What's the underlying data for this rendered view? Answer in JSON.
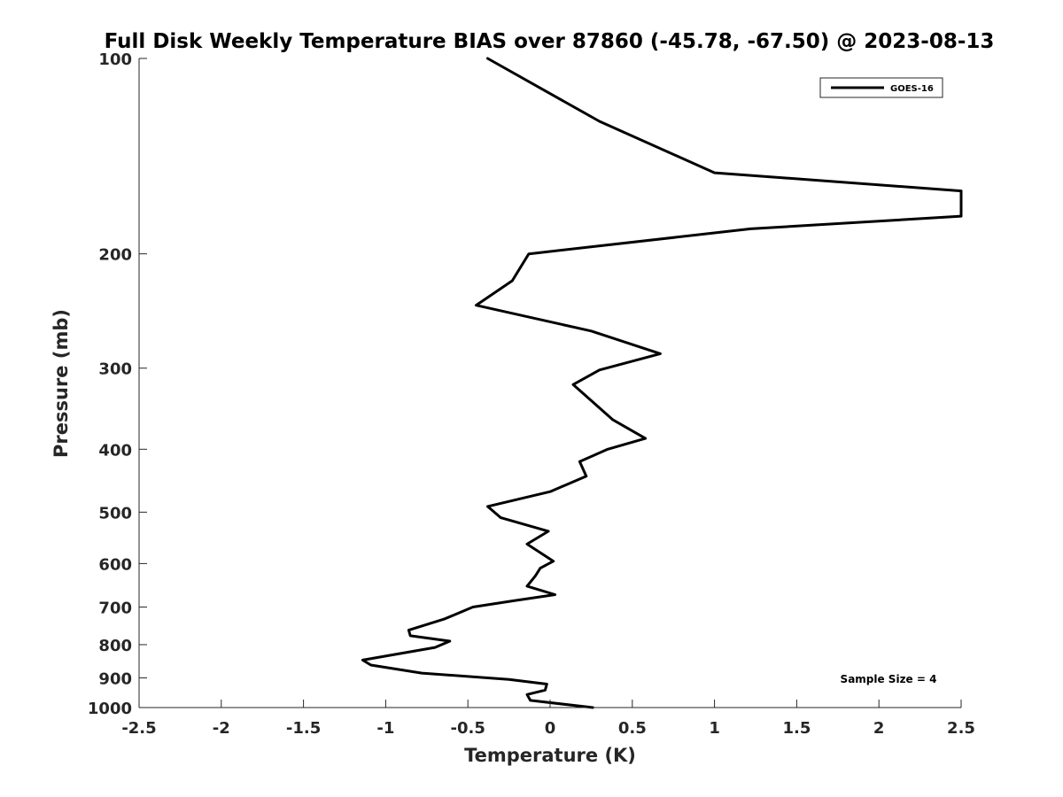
{
  "chart_data": {
    "type": "line",
    "title": "Full Disk Weekly Temperature BIAS over 87860 (-45.78, -67.50) @ 2023-08-13",
    "xlabel": "Temperature (K)",
    "ylabel": "Pressure (mb)",
    "xlim": [
      -2.5,
      2.5
    ],
    "ylim": [
      100,
      1000
    ],
    "y_scale": "log",
    "y_reversed": true,
    "grid": false,
    "x_ticks": [
      {
        "value": -2.5,
        "label": "-2.5"
      },
      {
        "value": -2,
        "label": "-2"
      },
      {
        "value": -1.5,
        "label": "-1.5"
      },
      {
        "value": -1,
        "label": "-1"
      },
      {
        "value": -0.5,
        "label": "-0.5"
      },
      {
        "value": 0,
        "label": "0"
      },
      {
        "value": 0.5,
        "label": "0.5"
      },
      {
        "value": 1,
        "label": "1"
      },
      {
        "value": 1.5,
        "label": "1.5"
      },
      {
        "value": 2,
        "label": "2"
      },
      {
        "value": 2.5,
        "label": "2.5"
      }
    ],
    "y_ticks": [
      {
        "value": 100,
        "label": "100"
      },
      {
        "value": 200,
        "label": "200"
      },
      {
        "value": 300,
        "label": "300"
      },
      {
        "value": 400,
        "label": "400"
      },
      {
        "value": 500,
        "label": "500"
      },
      {
        "value": 600,
        "label": "600"
      },
      {
        "value": 700,
        "label": "700"
      },
      {
        "value": 800,
        "label": "800"
      },
      {
        "value": 900,
        "label": "900"
      },
      {
        "value": 1000,
        "label": "1000"
      }
    ],
    "legend": {
      "position": "top-right",
      "entries": [
        "GOES-16"
      ]
    },
    "annotation": "Sample Size = 4",
    "colors": {
      "series": "#000000",
      "axes": "#262626",
      "background": "#ffffff"
    },
    "series": [
      {
        "name": "GOES-16",
        "points": [
          {
            "x": -0.38,
            "y": 100
          },
          {
            "x": 0.3,
            "y": 125
          },
          {
            "x": 1.0,
            "y": 150
          },
          {
            "x": 2.5,
            "y": 160
          },
          {
            "x": 2.5,
            "y": 175
          },
          {
            "x": 1.22,
            "y": 183
          },
          {
            "x": -0.13,
            "y": 200
          },
          {
            "x": -0.23,
            "y": 220
          },
          {
            "x": -0.45,
            "y": 240
          },
          {
            "x": 0.25,
            "y": 263
          },
          {
            "x": 0.67,
            "y": 285
          },
          {
            "x": 0.3,
            "y": 302
          },
          {
            "x": 0.14,
            "y": 318
          },
          {
            "x": 0.27,
            "y": 340
          },
          {
            "x": 0.38,
            "y": 360
          },
          {
            "x": 0.58,
            "y": 385
          },
          {
            "x": 0.35,
            "y": 400
          },
          {
            "x": 0.18,
            "y": 418
          },
          {
            "x": 0.22,
            "y": 440
          },
          {
            "x": 0.0,
            "y": 465
          },
          {
            "x": -0.38,
            "y": 490
          },
          {
            "x": -0.3,
            "y": 510
          },
          {
            "x": -0.01,
            "y": 535
          },
          {
            "x": -0.14,
            "y": 560
          },
          {
            "x": 0.02,
            "y": 595
          },
          {
            "x": -0.06,
            "y": 610
          },
          {
            "x": -0.09,
            "y": 627
          },
          {
            "x": -0.14,
            "y": 650
          },
          {
            "x": 0.03,
            "y": 670
          },
          {
            "x": -0.23,
            "y": 685
          },
          {
            "x": -0.47,
            "y": 700
          },
          {
            "x": -0.64,
            "y": 730
          },
          {
            "x": -0.86,
            "y": 760
          },
          {
            "x": -0.85,
            "y": 775
          },
          {
            "x": -0.61,
            "y": 790
          },
          {
            "x": -0.7,
            "y": 808
          },
          {
            "x": -1.14,
            "y": 845
          },
          {
            "x": -1.09,
            "y": 860
          },
          {
            "x": -0.78,
            "y": 885
          },
          {
            "x": -0.25,
            "y": 905
          },
          {
            "x": -0.02,
            "y": 920
          },
          {
            "x": -0.03,
            "y": 940
          },
          {
            "x": -0.14,
            "y": 955
          },
          {
            "x": -0.12,
            "y": 975
          },
          {
            "x": 0.26,
            "y": 1000
          }
        ]
      }
    ]
  }
}
